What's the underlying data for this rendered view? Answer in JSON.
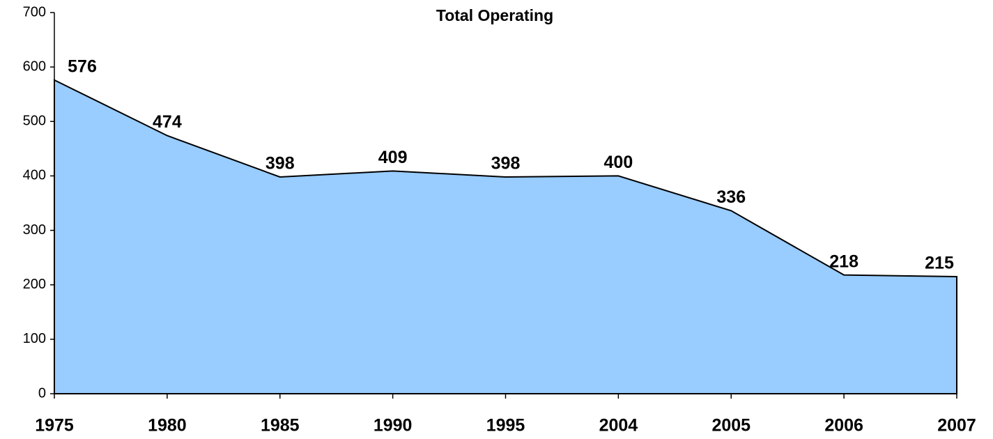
{
  "chart_data": {
    "type": "area",
    "title": "Total Operating",
    "categories": [
      "1975",
      "1980",
      "1985",
      "1990",
      "1995",
      "2004",
      "2005",
      "2006",
      "2007"
    ],
    "values": [
      576,
      474,
      398,
      409,
      398,
      400,
      336,
      218,
      215
    ],
    "color": "#99ccff",
    "ylim": [
      0,
      700
    ],
    "yticks": [
      0,
      100,
      200,
      300,
      400,
      500,
      600,
      700
    ],
    "grid": false
  }
}
